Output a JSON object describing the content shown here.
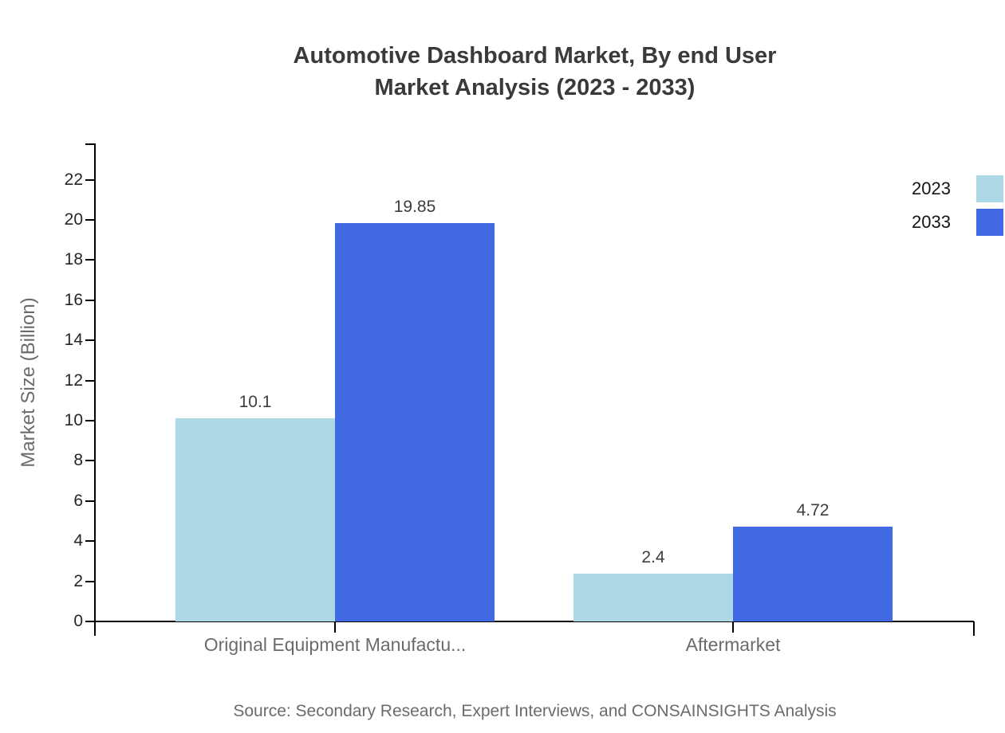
{
  "title": {
    "line1": "Automotive Dashboard Market, By end User",
    "line2": "Market Analysis (2023 - 2033)"
  },
  "source": "Source: Secondary Research, Expert Interviews, and CONSAINSIGHTS Analysis",
  "legend": {
    "items": [
      {
        "label": "2023",
        "color": "#ADD8E6"
      },
      {
        "label": "2033",
        "color": "#4169E1"
      }
    ]
  },
  "chart_data": {
    "type": "bar",
    "title": "Automotive Dashboard Market, By end User Market Analysis (2023 - 2033)",
    "categories": [
      "Original Equipment Manufactu...",
      "Aftermarket"
    ],
    "series": [
      {
        "name": "2023",
        "color": "#ADD8E6",
        "values": [
          10.1,
          2.4
        ]
      },
      {
        "name": "2033",
        "color": "#4169E1",
        "values": [
          19.85,
          4.72
        ]
      }
    ],
    "xlabel": "",
    "ylabel": "Market Size (Billion)",
    "ylim": [
      0,
      22
    ],
    "yticks": [
      0,
      2,
      4,
      6,
      8,
      10,
      12,
      14,
      16,
      18,
      20,
      22
    ],
    "grid": false,
    "legend_position": "top-right",
    "value_labels_shown": true,
    "axis_color": "#000000"
  }
}
